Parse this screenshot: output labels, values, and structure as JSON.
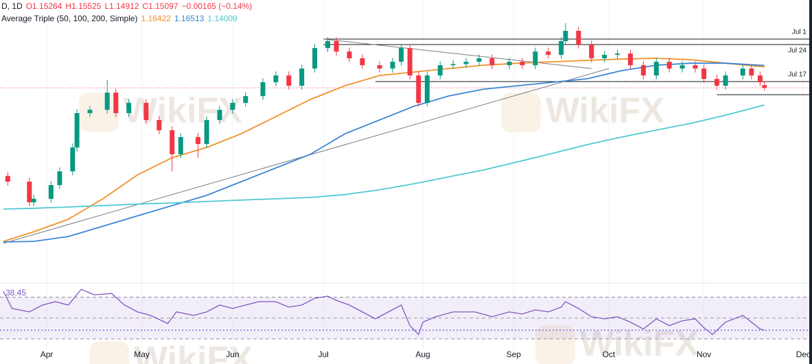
{
  "chart_data": {
    "type": "candlestick",
    "header": {
      "symbol": "D, 1D",
      "open": "O1.15264",
      "high": "H1.15525",
      "low": "L1.14912",
      "close": "C1.15097",
      "change": "−0.00165 (−0.14%)"
    },
    "indicator": "Average Triple (50, 100, 200, Simple)",
    "up_color": "#089981",
    "down_color": "#f23645",
    "x": [
      -9,
      -4,
      -3,
      1,
      3,
      6,
      7,
      10,
      14,
      16,
      19,
      23,
      26,
      29,
      31,
      35,
      37,
      40,
      43,
      46,
      50,
      53,
      56,
      59,
      62,
      65,
      67,
      70,
      73,
      77,
      80,
      82,
      84,
      86,
      88,
      91,
      94,
      97,
      100,
      103,
      107,
      110,
      113,
      116,
      119,
      120,
      123,
      126,
      129,
      132,
      135,
      138,
      141,
      144,
      147,
      150,
      152,
      155,
      157,
      161,
      163,
      165,
      166
    ],
    "open": [
      1.095,
      1.0914,
      1.0783,
      1.0805,
      1.0892,
      1.0979,
      1.1131,
      1.1349,
      1.137,
      1.1479,
      1.1349,
      1.1414,
      1.1305,
      1.124,
      1.1088,
      1.1197,
      1.1153,
      1.1305,
      1.137,
      1.1414,
      1.1457,
      1.1545,
      1.1588,
      1.1523,
      1.1632,
      1.1762,
      1.1806,
      1.174,
      1.1697,
      1.1653,
      1.1632,
      1.1675,
      1.1762,
      1.1588,
      1.1414,
      1.1588,
      1.1653,
      1.166,
      1.1675,
      1.1697,
      1.1653,
      1.1675,
      1.1653,
      1.174,
      1.1719,
      1.1806,
      1.1871,
      1.1784,
      1.1697,
      1.1719,
      1.1727,
      1.1653,
      1.1588,
      1.1675,
      1.1632,
      1.1653,
      1.1632,
      1.1566,
      1.1523,
      1.1588,
      1.1632,
      1.1588,
      1.15264
    ],
    "high": [
      1.0975,
      1.0939,
      1.083,
      1.0917,
      1.1004,
      1.1156,
      1.1374,
      1.1395,
      1.156,
      1.1504,
      1.1439,
      1.1439,
      1.133,
      1.1265,
      1.1222,
      1.1222,
      1.133,
      1.1395,
      1.1439,
      1.1482,
      1.157,
      1.1613,
      1.1613,
      1.1657,
      1.1787,
      1.1831,
      1.1831,
      1.1765,
      1.1722,
      1.1678,
      1.17,
      1.1787,
      1.1787,
      1.1613,
      1.1613,
      1.1678,
      1.1685,
      1.17,
      1.1722,
      1.1722,
      1.17,
      1.17,
      1.1765,
      1.1765,
      1.1831,
      1.192,
      1.1896,
      1.1809,
      1.1744,
      1.1752,
      1.1752,
      1.1678,
      1.17,
      1.17,
      1.1678,
      1.1678,
      1.1657,
      1.1591,
      1.1613,
      1.1657,
      1.1657,
      1.1613,
      1.15525
    ],
    "low": [
      1.0889,
      1.0758,
      1.0758,
      1.078,
      1.0867,
      1.0954,
      1.1106,
      1.1324,
      1.1345,
      1.1324,
      1.1324,
      1.128,
      1.1215,
      1.098,
      1.1063,
      1.1065,
      1.1128,
      1.128,
      1.1345,
      1.1389,
      1.1432,
      1.152,
      1.1498,
      1.1498,
      1.1607,
      1.1737,
      1.1715,
      1.1672,
      1.1628,
      1.1607,
      1.1607,
      1.165,
      1.1563,
      1.1392,
      1.1392,
      1.1563,
      1.1628,
      1.1635,
      1.165,
      1.1628,
      1.1628,
      1.1628,
      1.1628,
      1.1694,
      1.1694,
      1.1781,
      1.1759,
      1.1672,
      1.1672,
      1.1694,
      1.1628,
      1.1563,
      1.1563,
      1.1607,
      1.1607,
      1.1607,
      1.1541,
      1.1498,
      1.1498,
      1.1563,
      1.1563,
      1.152,
      1.14912
    ],
    "close": [
      1.0914,
      1.0783,
      1.0805,
      1.0892,
      1.0979,
      1.1131,
      1.1349,
      1.137,
      1.1479,
      1.1349,
      1.1414,
      1.1305,
      1.124,
      1.1088,
      1.1197,
      1.1153,
      1.1305,
      1.137,
      1.1414,
      1.1457,
      1.1545,
      1.1588,
      1.1523,
      1.1632,
      1.1762,
      1.1806,
      1.174,
      1.1697,
      1.1653,
      1.1632,
      1.1675,
      1.1762,
      1.1588,
      1.1414,
      1.1588,
      1.1653,
      1.166,
      1.1675,
      1.1697,
      1.1653,
      1.1675,
      1.1653,
      1.174,
      1.1719,
      1.1806,
      1.1871,
      1.1784,
      1.1697,
      1.1719,
      1.1727,
      1.1653,
      1.1588,
      1.1675,
      1.1632,
      1.1653,
      1.1632,
      1.1566,
      1.1523,
      1.1588,
      1.1632,
      1.1588,
      1.1545,
      1.15097
    ],
    "xlim": [
      -10.8,
      177
    ],
    "xticks": [
      {
        "value": 0,
        "label": "Apr"
      },
      {
        "value": 22,
        "label": "May"
      },
      {
        "value": 43,
        "label": "Jun"
      },
      {
        "value": 64,
        "label": "Jul"
      },
      {
        "value": 87,
        "label": "Aug"
      },
      {
        "value": 108,
        "label": "Sep"
      },
      {
        "value": 130,
        "label": "Oct"
      },
      {
        "value": 152,
        "label": "Nov"
      },
      {
        "value": 175,
        "label": "Dec"
      }
    ],
    "ylim": [
      1.0283,
      1.2067
    ],
    "grid": true,
    "moving_averages": [
      {
        "color": "#f0902a",
        "x": [
          -10,
          -3,
          5,
          13,
          21,
          29,
          37,
          45,
          53,
          61,
          69,
          77,
          85,
          93,
          101,
          109,
          117,
          125,
          133,
          141,
          149,
          157,
          166
        ],
        "values": [
          1.0535,
          1.0596,
          1.0675,
          1.0805,
          1.0957,
          1.1066,
          1.1131,
          1.1218,
          1.1327,
          1.1436,
          1.1523,
          1.1588,
          1.161,
          1.1632,
          1.1653,
          1.1666,
          1.1675,
          1.1684,
          1.1692,
          1.1697,
          1.1688,
          1.1666,
          1.16422
        ]
      },
      {
        "color": "#3a86d4",
        "x": [
          -10,
          -3,
          5,
          13,
          21,
          29,
          37,
          45,
          53,
          61,
          69,
          77,
          85,
          93,
          101,
          109,
          117,
          125,
          133,
          141,
          149,
          157,
          166
        ],
        "values": [
          1.0531,
          1.0535,
          1.0566,
          1.0631,
          1.0697,
          1.0762,
          1.0827,
          1.0914,
          1.1001,
          1.1088,
          1.1218,
          1.1306,
          1.1393,
          1.1458,
          1.1501,
          1.1523,
          1.1545,
          1.1567,
          1.1619,
          1.1653,
          1.1666,
          1.1666,
          1.16513
        ]
      },
      {
        "color": "#4fc9d2",
        "x": [
          -10,
          -3,
          5,
          13,
          21,
          29,
          37,
          45,
          53,
          61,
          69,
          77,
          85,
          93,
          101,
          109,
          117,
          125,
          133,
          141,
          149,
          157,
          166
        ],
        "values": [
          1.074,
          1.0745,
          1.0753,
          1.0762,
          1.0771,
          1.0779,
          1.0788,
          1.0797,
          1.0805,
          1.0814,
          1.0832,
          1.0862,
          1.0901,
          1.0945,
          1.0988,
          1.104,
          1.1093,
          1.1149,
          1.1197,
          1.1241,
          1.1284,
          1.1336,
          1.14009
        ]
      }
    ],
    "levels": [
      {
        "label": "Jul 1",
        "value": 1.1819,
        "x_start": 64
      },
      {
        "label": "Jul 24",
        "value": 1.1784,
        "x_start": 64
      },
      {
        "label": "Jul 17",
        "value": 1.1549,
        "x_start": 76
      },
      {
        "value": 1.1466,
        "x_start": 155
      }
    ],
    "trendlines": [
      {
        "x": [
          64,
          126
        ],
        "y": [
          1.1819,
          1.1632
        ]
      },
      {
        "x": [
          -10,
          130
        ],
        "y": [
          1.0523,
          1.1632
        ]
      }
    ],
    "rsi": {
      "color": "#7e57c2",
      "ylim": [
        19.8,
        78.9
      ],
      "levels": [
        70,
        50,
        30
      ],
      "x": [
        -10,
        -8,
        -4,
        -1,
        2,
        5,
        8,
        11,
        15,
        18,
        21,
        24,
        28,
        30,
        34,
        37,
        40,
        43,
        46,
        49,
        53,
        56,
        59,
        62,
        65,
        67,
        70,
        73,
        76,
        79,
        82,
        84,
        86,
        87,
        90,
        94,
        99,
        103,
        107,
        110,
        113,
        116,
        119,
        120,
        123,
        126,
        129,
        132,
        135,
        138,
        141,
        144,
        147,
        150,
        152,
        154,
        157,
        161,
        163,
        165,
        166
      ],
      "values": [
        75.6,
        59.2,
        55.9,
        62.5,
        65.7,
        62.5,
        77.5,
        72.3,
        73.6,
        62.5,
        55.9,
        52.6,
        44.8,
        55.9,
        52.6,
        55.9,
        62.5,
        59.2,
        62.5,
        65.7,
        65.7,
        60.5,
        62.5,
        69.0,
        71.0,
        67.0,
        62.5,
        55.9,
        49.3,
        55.9,
        62.5,
        42.8,
        34.3,
        46.1,
        51.3,
        55.9,
        55.9,
        51.3,
        55.9,
        53.9,
        57.9,
        55.9,
        60.5,
        65.7,
        59.2,
        51.3,
        49.3,
        51.3,
        46.1,
        39.5,
        49.3,
        42.8,
        47.4,
        49.3,
        40.8,
        34.3,
        46.1,
        52.6,
        46.1,
        39.5,
        38.45
      ]
    },
    "watermark": "WikiFX"
  }
}
